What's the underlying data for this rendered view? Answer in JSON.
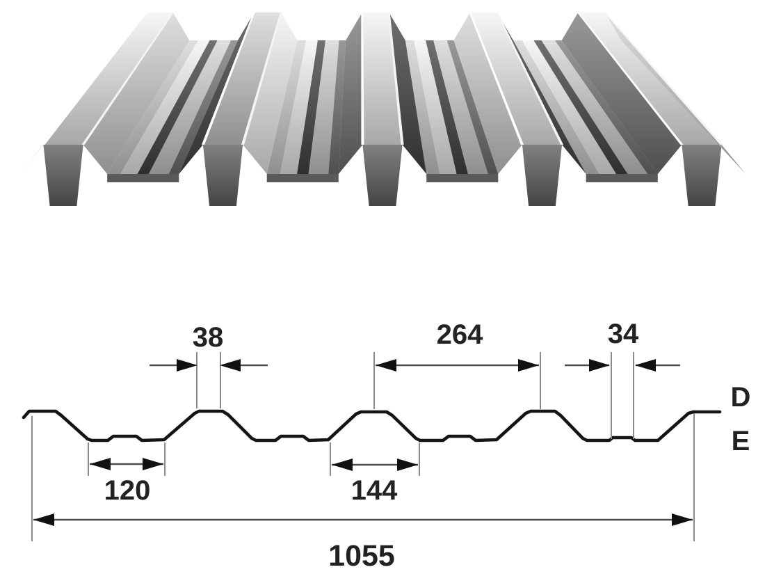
{
  "drawing": {
    "dims": {
      "crest_top_width": "38",
      "rib_pitch": "264",
      "stiffener_width": "34",
      "valley_width": "120",
      "rib_base_width": "144",
      "overall_width": "1055"
    },
    "labels": {
      "top_level": "D",
      "bottom_level": "E"
    },
    "colors": {
      "background": "#ffffff",
      "profile_line": "#141414",
      "dimension_line": "#4d4d4d",
      "extension_line": "#8a8a8a",
      "text": "#222222"
    }
  }
}
